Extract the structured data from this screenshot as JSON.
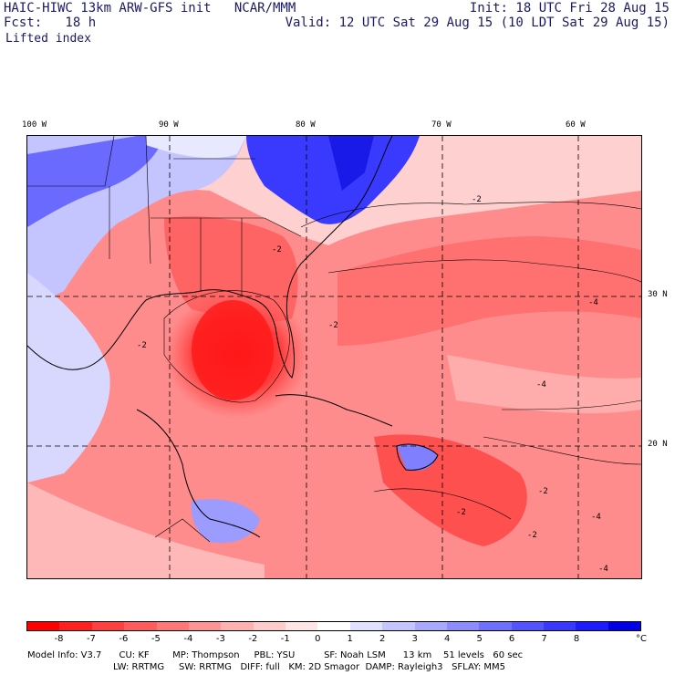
{
  "header": {
    "model_title": "HAIC-HIWC 13km ARW-GFS init   NCAR/MMM",
    "init_time": "Init: 18 UTC Fri 28 Aug 15",
    "forecast": "Fcst:   18 h",
    "valid_time": "Valid: 12 UTC Sat 29 Aug 15 (10 LDT Sat 29 Aug 15)",
    "field_name": "Lifted index"
  },
  "map": {
    "longitude_labels": [
      "100 W",
      "90 W",
      "80 W",
      "70 W",
      "60 W"
    ],
    "latitude_labels": [
      "30 N",
      "20 N"
    ],
    "contour_labels": [
      "-2",
      "-4",
      "-2",
      "-4",
      "-2",
      "-2",
      "-4",
      "-2",
      "-2",
      "-4",
      "-2"
    ]
  },
  "colorbar": {
    "colors": [
      "#ff0000",
      "#ff2020",
      "#ff4040",
      "#ff5c5c",
      "#ff7878",
      "#ff9494",
      "#ffb0b0",
      "#ffcccc",
      "#ffe6e6",
      "#ffffff",
      "#e0e0ff",
      "#c4c4ff",
      "#a8a8ff",
      "#8c8cff",
      "#7070ff",
      "#5454ff",
      "#3838ff",
      "#1c1cff",
      "#0000e8"
    ],
    "tick_labels": [
      "-8",
      "-7",
      "-6",
      "-5",
      "-4",
      "-3",
      "-2",
      "-1",
      "0",
      "1",
      "2",
      "3",
      "4",
      "5",
      "6",
      "7",
      "8"
    ],
    "unit": "°C"
  },
  "model_info": {
    "line1": "Model Info: V3.7      CU: KF        MP: Thompson     PBL: YSU          SF: Noah LSM      13 km    51 levels   60 sec",
    "line2": "LW: RRTMG     SW: RRTMG   DIFF: full   KM: 2D Smagor  DAMP: Rayleigh3   SFLAY: MM5"
  }
}
